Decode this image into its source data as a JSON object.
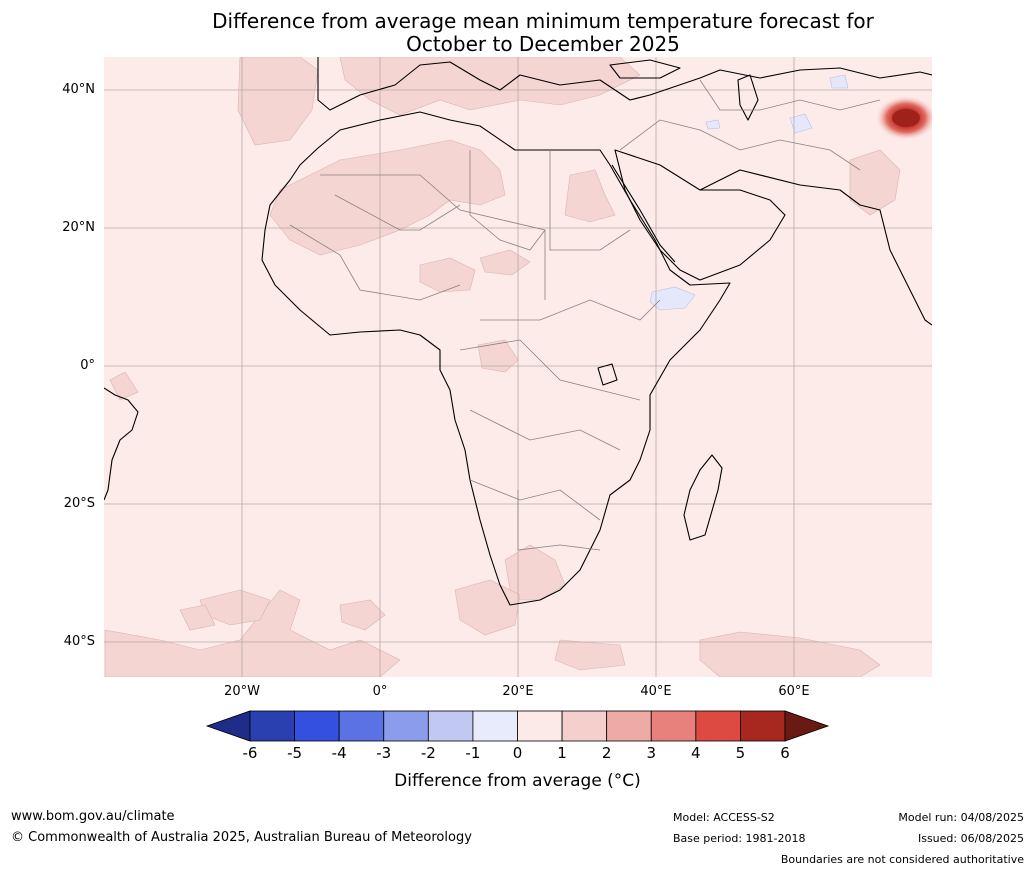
{
  "title_line1": "Difference from average mean minimum temperature forecast for",
  "title_line2": "October to December 2025",
  "lat_labels": [
    "40°N",
    "20°N",
    "0°",
    "20°S",
    "40°S"
  ],
  "lon_labels": [
    "20°W",
    "0°",
    "20°E",
    "40°E",
    "60°E"
  ],
  "colorbar": {
    "label": "Difference from average (°C)",
    "ticks": [
      "-6",
      "-5",
      "-4",
      "-3",
      "-2",
      "-1",
      "0",
      "1",
      "2",
      "3",
      "4",
      "5",
      "6"
    ],
    "colors": [
      "#1f2d8a",
      "#2a3fb0",
      "#3450e0",
      "#5a72e3",
      "#8a9ceb",
      "#c1c9f2",
      "#e8ebfb",
      "#fbeae8",
      "#f4cfcc",
      "#eeaaa5",
      "#e8817c",
      "#dc4a42",
      "#a8281f",
      "#6b1a13"
    ]
  },
  "map": {
    "ocean_color": "#fcebe9",
    "land_anomaly_color": "#fbeae8",
    "warm_patch_color": "#f4d5d1",
    "hotspot_color": "#b8271e",
    "cool_patch_color": "#e4e8fa"
  },
  "footer": {
    "website": "www.bom.gov.au/climate",
    "copyright": "© Commonwealth of Australia 2025, Australian Bureau of Meteorology",
    "model": "Model: ACCESS-S2",
    "base_period": "Base period: 1981-2018",
    "model_run": "Model run: 04/08/2025",
    "issued": "Issued: 06/08/2025",
    "disclaimer": "Boundaries are not considered authoritative"
  }
}
